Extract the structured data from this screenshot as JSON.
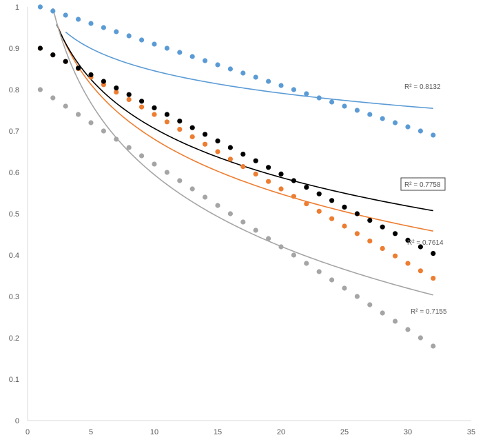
{
  "chart_data": {
    "type": "scatter",
    "title": "",
    "xlabel": "",
    "ylabel": "",
    "xlim": [
      0,
      35
    ],
    "ylim": [
      0,
      1
    ],
    "x_ticks": [
      "0",
      "5",
      "10",
      "15",
      "20",
      "25",
      "30",
      "35"
    ],
    "y_ticks": [
      "0",
      "0.1",
      "0.2",
      "0.3",
      "0.4",
      "0.5",
      "0.6",
      "0.7",
      "0.8",
      "0.9",
      "1"
    ],
    "grid": false,
    "legend": "none",
    "x": [
      1,
      2,
      3,
      4,
      5,
      6,
      7,
      8,
      9,
      10,
      11,
      12,
      13,
      14,
      15,
      16,
      17,
      18,
      19,
      20,
      21,
      22,
      23,
      24,
      25,
      26,
      27,
      28,
      29,
      30,
      31,
      32
    ],
    "series": [
      {
        "color": "#5b9bd5",
        "values": [
          1.0,
          0.99,
          0.98,
          0.97,
          0.96,
          0.95,
          0.94,
          0.93,
          0.92,
          0.91,
          0.9,
          0.89,
          0.88,
          0.87,
          0.86,
          0.85,
          0.84,
          0.83,
          0.82,
          0.81,
          0.8,
          0.79,
          0.78,
          0.77,
          0.76,
          0.75,
          0.74,
          0.73,
          0.72,
          0.71,
          0.7,
          0.69
        ],
        "trendline": {
          "type": "logarithmic",
          "a": 1.025,
          "b": -0.078,
          "x_start": 3.0,
          "x_end": 32
        },
        "r2_label": "R² = 0.8132",
        "r2_boxed": false
      },
      {
        "color": "#ed7d31",
        "values": [
          0.9,
          0.884,
          0.868,
          0.851,
          0.83,
          0.812,
          0.794,
          0.776,
          0.758,
          0.74,
          0.722,
          0.704,
          0.686,
          0.668,
          0.65,
          0.632,
          0.614,
          0.596,
          0.578,
          0.56,
          0.542,
          0.524,
          0.506,
          0.488,
          0.47,
          0.452,
          0.434,
          0.416,
          0.398,
          0.38,
          0.362,
          0.344
        ],
        "trendline": {
          "type": "logarithmic",
          "a": 1.12,
          "b": -0.191,
          "x_start": 2.4,
          "x_end": 32
        },
        "r2_label": "R² = 0.7614",
        "r2_boxed": false
      },
      {
        "color": "#000000",
        "values": [
          0.9,
          0.884,
          0.868,
          0.852,
          0.836,
          0.82,
          0.804,
          0.788,
          0.772,
          0.756,
          0.74,
          0.724,
          0.708,
          0.692,
          0.676,
          0.66,
          0.644,
          0.628,
          0.612,
          0.596,
          0.58,
          0.564,
          0.548,
          0.532,
          0.516,
          0.5,
          0.484,
          0.468,
          0.452,
          0.436,
          0.42,
          0.404
        ],
        "trendline": {
          "type": "logarithmic",
          "a": 1.1,
          "b": -0.171,
          "x_start": 2.3,
          "x_end": 32
        },
        "r2_label": "R² = 0.7758",
        "r2_boxed": true
      },
      {
        "color": "#a5a5a5",
        "values": [
          0.8,
          0.78,
          0.76,
          0.74,
          0.72,
          0.7,
          0.68,
          0.66,
          0.64,
          0.62,
          0.6,
          0.58,
          0.56,
          0.54,
          0.52,
          0.5,
          0.48,
          0.46,
          0.44,
          0.42,
          0.4,
          0.38,
          0.36,
          0.34,
          0.32,
          0.3,
          0.28,
          0.26,
          0.24,
          0.22,
          0.2,
          0.18
        ],
        "trendline": {
          "type": "logarithmic",
          "a": 1.17,
          "b": -0.25,
          "x_start": 2.0,
          "x_end": 32
        },
        "r2_label": "R² = 0.7155",
        "r2_boxed": false
      }
    ]
  }
}
